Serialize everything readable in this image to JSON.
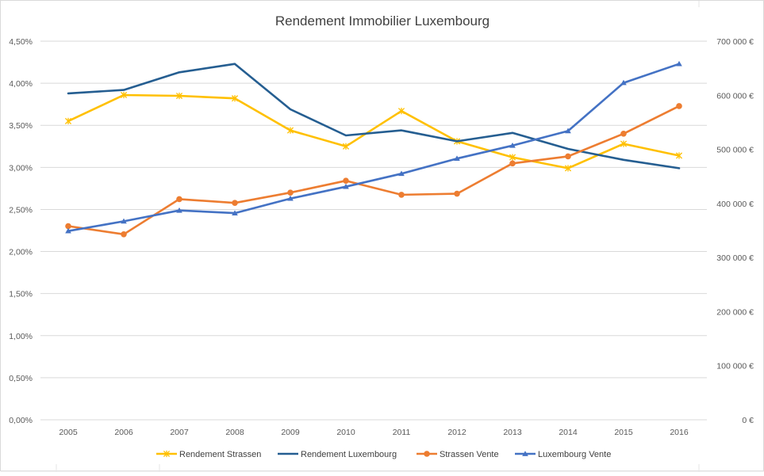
{
  "chart_data": {
    "type": "line",
    "title": "Rendement Immobilier Luxembourg",
    "categories": [
      "2005",
      "2006",
      "2007",
      "2008",
      "2009",
      "2010",
      "2011",
      "2012",
      "2013",
      "2014",
      "2015",
      "2016"
    ],
    "left_axis": {
      "ylim": [
        0,
        0.045
      ],
      "ticks": [
        0,
        0.005,
        0.01,
        0.015,
        0.02,
        0.025,
        0.03,
        0.035,
        0.04,
        0.045
      ],
      "tick_labels": [
        "0,00%",
        "0,50%",
        "1,00%",
        "1,50%",
        "2,00%",
        "2,50%",
        "3,00%",
        "3,50%",
        "4,00%",
        "4,50%"
      ]
    },
    "right_axis": {
      "ylim": [
        0,
        700000
      ],
      "ticks": [
        0,
        100000,
        200000,
        300000,
        400000,
        500000,
        600000,
        700000
      ],
      "tick_labels": [
        "0 €",
        "100 000 €",
        "200 000 €",
        "300 000 €",
        "400 000 €",
        "500 000 €",
        "600 000 €",
        "700 000 €"
      ]
    },
    "grid": true,
    "legend_position": "bottom",
    "series": [
      {
        "name": "Rendement Strassen",
        "axis": "left",
        "color": "#FFC000",
        "marker": "star",
        "values": [
          0.0355,
          0.0386,
          0.0385,
          0.0382,
          0.0344,
          0.0325,
          0.0367,
          0.0331,
          0.0312,
          0.0299,
          0.0328,
          0.0314
        ]
      },
      {
        "name": "Rendement Luxembourg",
        "axis": "left",
        "color": "#255E91",
        "marker": "none",
        "values": [
          0.0388,
          0.0392,
          0.0413,
          0.0423,
          0.0369,
          0.0338,
          0.0344,
          0.0331,
          0.0341,
          0.0322,
          0.0309,
          0.0299
        ]
      },
      {
        "name": "Strassen Vente",
        "axis": "right",
        "color": "#ED7D31",
        "marker": "circle",
        "values": [
          358000,
          343000,
          408000,
          401000,
          420000,
          442000,
          416000,
          418000,
          474000,
          487000,
          529000,
          580000
        ]
      },
      {
        "name": "Luxembourg Vente",
        "axis": "right",
        "color": "#4472C4",
        "marker": "triangle",
        "values": [
          349000,
          367000,
          387000,
          382000,
          409000,
          431000,
          455000,
          483000,
          507000,
          534000,
          623000,
          658000
        ]
      }
    ]
  }
}
